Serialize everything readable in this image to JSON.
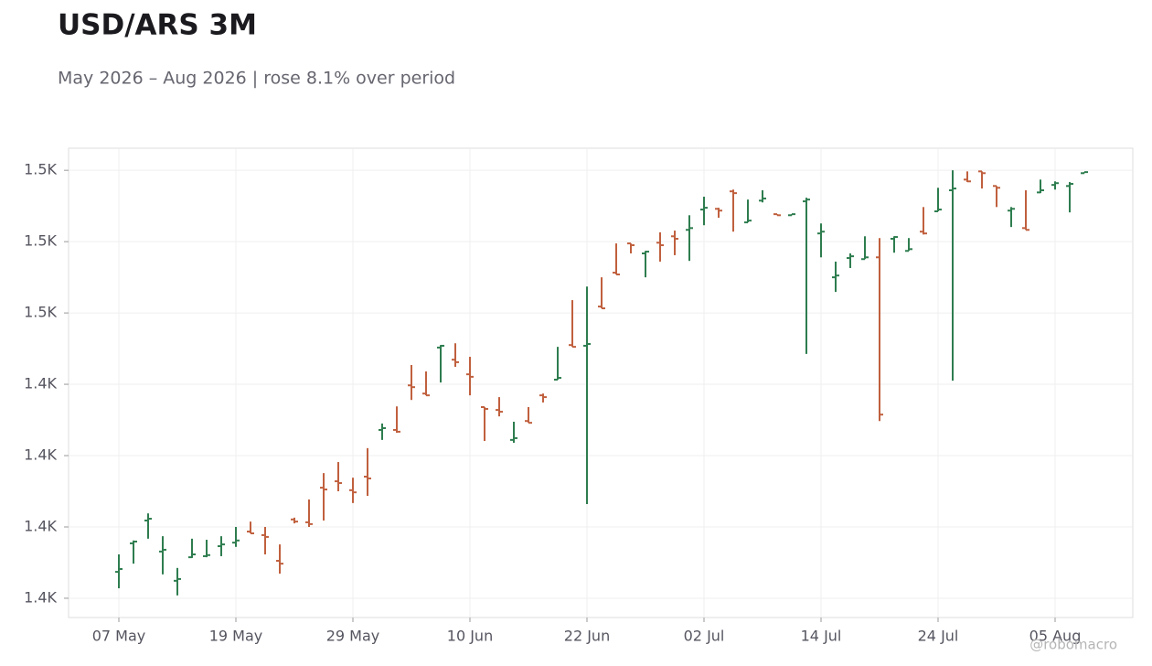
{
  "chart_data": {
    "type": "ohlc",
    "title": "USD/ARS 3M",
    "subtitle": "May 2026 – Aug 2026 | rose 8.1% over period",
    "watermark": "@robomacro",
    "categories": [
      "07 May",
      null,
      null,
      null,
      null,
      null,
      null,
      null,
      "19 May",
      null,
      null,
      null,
      null,
      null,
      null,
      null,
      "29 May",
      null,
      null,
      null,
      null,
      null,
      null,
      null,
      "10 Jun",
      null,
      null,
      null,
      null,
      null,
      null,
      null,
      "22 Jun",
      null,
      null,
      null,
      null,
      null,
      null,
      null,
      "02 Jul",
      null,
      null,
      null,
      null,
      null,
      null,
      null,
      "14 Jul",
      null,
      null,
      null,
      null,
      null,
      null,
      null,
      "24 Jul",
      null,
      null,
      null,
      null,
      null,
      null,
      null,
      "05 Aug",
      null,
      null
    ],
    "open": [
      1382.4,
      1390.4,
      1396.8,
      1388.1,
      1379.9,
      1386.5,
      1386.8,
      1389.6,
      1390.6,
      1393.7,
      1392.7,
      1385.5,
      1397.1,
      1396.3,
      1406.0,
      1407.8,
      1405.3,
      1409.1,
      1422.2,
      1422.2,
      1434.7,
      1432.4,
      1445.3,
      1441.9,
      1437.8,
      1428.6,
      1427.8,
      1419.4,
      1424.7,
      1431.9,
      1436.3,
      1446.0,
      1445.8,
      1456.8,
      1466.3,
      1474.5,
      1471.7,
      1474.7,
      1476.5,
      1478.3,
      1484.0,
      1484.2,
      1489.1,
      1480.4,
      1486.5,
      1482.7,
      1482.4,
      1486.3,
      1477.3,
      1465.0,
      1470.4,
      1470.1,
      1470.6,
      1475.8,
      1472.4,
      1477.8,
      1483.5,
      1489.4,
      1492.4,
      1494.7,
      1490.6,
      1483.7,
      1478.8,
      1488.8,
      1490.9,
      1490.6,
      1494.2
    ],
    "high": [
      1387.3,
      1391.2,
      1398.8,
      1392.4,
      1383.5,
      1391.7,
      1391.4,
      1392.4,
      1395.0,
      1396.5,
      1395.0,
      1390.1,
      1397.6,
      1402.7,
      1410.1,
      1413.2,
      1408.8,
      1417.1,
      1424.0,
      1428.8,
      1440.4,
      1438.6,
      1446.0,
      1446.5,
      1442.7,
      1428.6,
      1431.4,
      1424.5,
      1428.6,
      1432.4,
      1445.5,
      1458.6,
      1462.4,
      1465.0,
      1474.5,
      1474.5,
      1472.4,
      1477.6,
      1478.1,
      1482.4,
      1487.6,
      1484.5,
      1489.6,
      1486.8,
      1489.4,
      1482.7,
      1482.7,
      1487.3,
      1480.1,
      1469.4,
      1471.7,
      1476.5,
      1476.0,
      1476.5,
      1476.0,
      1484.7,
      1490.1,
      1495.0,
      1494.7,
      1494.7,
      1490.6,
      1484.7,
      1489.4,
      1492.4,
      1491.9,
      1491.7,
      1494.5
    ],
    "low": [
      1377.8,
      1384.7,
      1391.7,
      1381.7,
      1375.8,
      1386.3,
      1386.5,
      1386.8,
      1389.4,
      1393.2,
      1387.3,
      1381.9,
      1396.0,
      1395.0,
      1396.8,
      1405.0,
      1401.7,
      1403.7,
      1419.4,
      1421.4,
      1430.6,
      1431.9,
      1435.5,
      1439.9,
      1431.9,
      1419.1,
      1426.0,
      1418.6,
      1424.2,
      1429.9,
      1436.3,
      1445.5,
      1401.4,
      1456.3,
      1465.8,
      1471.7,
      1465.0,
      1469.4,
      1471.2,
      1469.6,
      1479.6,
      1481.7,
      1477.8,
      1480.4,
      1486.0,
      1482.4,
      1482.4,
      1443.5,
      1470.6,
      1460.9,
      1467.6,
      1470.1,
      1424.7,
      1471.9,
      1472.4,
      1477.0,
      1483.5,
      1436.0,
      1491.7,
      1489.9,
      1484.7,
      1479.1,
      1478.3,
      1488.6,
      1489.6,
      1483.2,
      1494.2
    ],
    "close": [
      1383.2,
      1390.9,
      1397.3,
      1388.6,
      1380.4,
      1387.3,
      1387.1,
      1390.1,
      1391.2,
      1393.2,
      1392.2,
      1384.7,
      1396.5,
      1395.8,
      1405.5,
      1407.3,
      1404.7,
      1408.6,
      1422.7,
      1421.7,
      1434.2,
      1431.9,
      1445.8,
      1441.2,
      1437.1,
      1428.1,
      1427.3,
      1419.9,
      1424.2,
      1431.4,
      1436.8,
      1445.5,
      1446.3,
      1456.3,
      1465.8,
      1474.0,
      1472.2,
      1474.0,
      1475.8,
      1478.8,
      1484.5,
      1483.7,
      1488.6,
      1480.9,
      1487.1,
      1482.4,
      1482.7,
      1486.8,
      1477.8,
      1465.5,
      1470.9,
      1470.6,
      1426.5,
      1476.3,
      1472.9,
      1477.3,
      1484.0,
      1489.9,
      1491.9,
      1494.2,
      1490.1,
      1484.2,
      1478.3,
      1489.4,
      1491.4,
      1491.2,
      1494.5
    ],
    "up_color": "#2e7d4f",
    "down_color": "#c0603e",
    "ylim": [
      1369.6,
      1501.2
    ],
    "yticks": [
      {
        "value": 1375,
        "label": "1.4K"
      },
      {
        "value": 1395,
        "label": "1.4K"
      },
      {
        "value": 1415,
        "label": "1.4K"
      },
      {
        "value": 1435,
        "label": "1.4K"
      },
      {
        "value": 1455,
        "label": "1.5K"
      },
      {
        "value": 1475,
        "label": "1.5K"
      },
      {
        "value": 1495,
        "label": "1.5K"
      }
    ],
    "grid": true
  }
}
